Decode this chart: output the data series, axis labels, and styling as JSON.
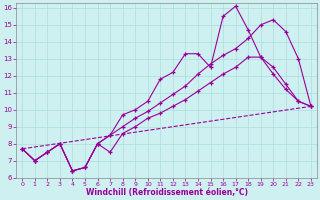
{
  "xlabel": "Windchill (Refroidissement éolien,°C)",
  "bg_color": "#cff0f0",
  "grid_color": "#aadddd",
  "line_color": "#990099",
  "xlim": [
    -0.5,
    23.5
  ],
  "ylim": [
    6,
    16.3
  ],
  "xticks": [
    0,
    1,
    2,
    3,
    4,
    5,
    6,
    7,
    8,
    9,
    10,
    11,
    12,
    13,
    14,
    15,
    16,
    17,
    18,
    19,
    20,
    21,
    22,
    23
  ],
  "yticks": [
    6,
    7,
    8,
    9,
    10,
    11,
    12,
    13,
    14,
    15,
    16
  ],
  "line1_x": [
    0,
    1,
    2,
    3,
    4,
    5,
    6,
    7,
    8,
    9,
    10,
    11,
    12,
    13,
    14,
    15,
    16,
    17,
    18,
    19,
    20,
    21,
    22,
    23
  ],
  "line1_y": [
    7.7,
    7.0,
    7.5,
    8.0,
    6.4,
    6.6,
    8.0,
    8.5,
    9.7,
    10.0,
    10.5,
    11.8,
    12.2,
    13.3,
    13.3,
    12.5,
    15.5,
    16.1,
    14.7,
    13.1,
    12.5,
    11.5,
    10.5,
    10.2
  ],
  "line2_x": [
    0,
    1,
    2,
    3,
    4,
    5,
    6,
    7,
    8,
    9,
    10,
    11,
    12,
    13,
    14,
    15,
    16,
    17,
    18,
    19,
    20,
    21,
    22,
    23
  ],
  "line2_y": [
    7.7,
    7.0,
    7.5,
    8.0,
    6.4,
    6.6,
    8.0,
    8.5,
    9.0,
    9.5,
    9.9,
    10.4,
    10.9,
    11.4,
    12.1,
    12.7,
    13.2,
    13.6,
    14.2,
    15.0,
    15.3,
    14.6,
    13.0,
    10.2
  ],
  "line3_x": [
    0,
    1,
    2,
    3,
    4,
    5,
    6,
    7,
    8,
    9,
    10,
    11,
    12,
    13,
    14,
    15,
    16,
    17,
    18,
    19,
    20,
    21,
    22,
    23
  ],
  "line3_y": [
    7.7,
    7.0,
    7.5,
    8.0,
    6.4,
    6.6,
    8.0,
    7.5,
    8.6,
    9.0,
    9.5,
    9.8,
    10.2,
    10.6,
    11.1,
    11.6,
    12.1,
    12.5,
    13.1,
    13.1,
    12.1,
    11.2,
    10.5,
    10.2
  ],
  "line4_x": [
    0,
    23
  ],
  "line4_y": [
    7.7,
    10.2
  ]
}
